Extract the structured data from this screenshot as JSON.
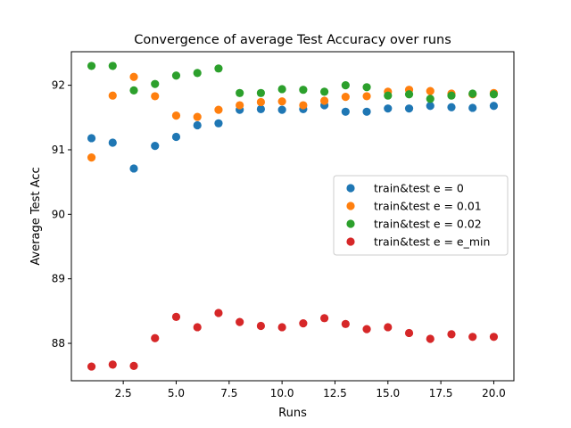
{
  "chart_data": {
    "type": "scatter",
    "title": "Convergence of average Test Accuracy over runs",
    "xlabel": "Runs",
    "ylabel": "Average Test Acc",
    "xlim": [
      0.05,
      20.95
    ],
    "ylim": [
      87.42,
      92.52
    ],
    "xticks": [
      2.5,
      5.0,
      7.5,
      10.0,
      12.5,
      15.0,
      17.5,
      20.0
    ],
    "xtick_labels": [
      "2.5",
      "5.0",
      "7.5",
      "10.0",
      "12.5",
      "15.0",
      "17.5",
      "20.0"
    ],
    "yticks": [
      88,
      89,
      90,
      91,
      92
    ],
    "ytick_labels": [
      "88",
      "89",
      "90",
      "91",
      "92"
    ],
    "grid": false,
    "legend_position": "center-right",
    "x": [
      1,
      2,
      3,
      4,
      5,
      6,
      7,
      8,
      9,
      10,
      11,
      12,
      13,
      14,
      15,
      16,
      17,
      18,
      19,
      20
    ],
    "series": [
      {
        "name": "train&test e = 0",
        "color": "#1f77b4",
        "values": [
          91.18,
          91.11,
          90.71,
          91.06,
          91.2,
          91.38,
          91.41,
          91.62,
          91.63,
          91.62,
          91.63,
          91.69,
          91.59,
          91.59,
          91.64,
          91.64,
          91.68,
          91.66,
          91.65,
          91.68
        ]
      },
      {
        "name": "train&test e = 0.01",
        "color": "#ff7f0e",
        "values": [
          90.88,
          91.84,
          92.13,
          91.83,
          91.53,
          91.51,
          91.62,
          91.69,
          91.74,
          91.75,
          91.69,
          91.76,
          91.82,
          91.83,
          91.9,
          91.93,
          91.91,
          91.87,
          91.86,
          91.88
        ]
      },
      {
        "name": "train&test e = 0.02",
        "color": "#2ca02c",
        "values": [
          92.3,
          92.3,
          91.92,
          92.02,
          92.15,
          92.19,
          92.26,
          91.88,
          91.88,
          91.94,
          91.93,
          91.9,
          92.0,
          91.97,
          91.84,
          91.86,
          91.79,
          91.84,
          91.87,
          91.86
        ]
      },
      {
        "name": "train&test e = e_min",
        "color": "#d62728",
        "values": [
          87.64,
          87.67,
          87.65,
          88.08,
          88.41,
          88.25,
          88.47,
          88.33,
          88.27,
          88.25,
          88.31,
          88.39,
          88.3,
          88.22,
          88.25,
          88.16,
          88.07,
          88.14,
          88.1,
          88.1
        ]
      }
    ]
  }
}
